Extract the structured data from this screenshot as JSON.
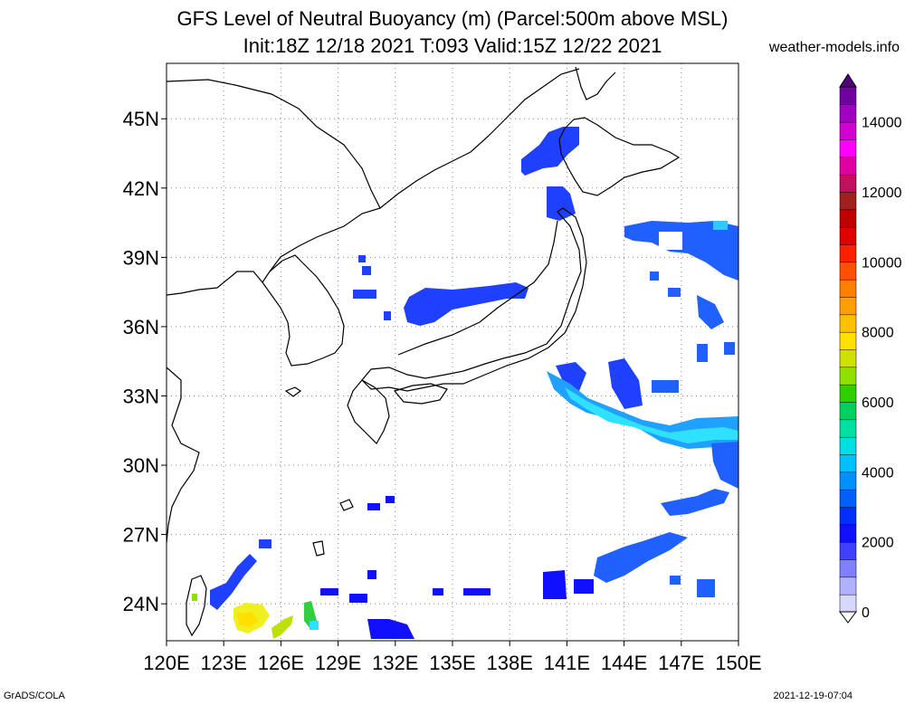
{
  "header": {
    "title_line1": "GFS Level of Neutral Buoyancy (m) (Parcel:500m above MSL)",
    "title_line2": "Init:18Z 12/18 2021 T:093 Valid:15Z 12/22 2021",
    "site": "weather-models.info"
  },
  "map": {
    "lat_labels": [
      "45N",
      "42N",
      "39N",
      "36N",
      "33N",
      "30N",
      "27N",
      "24N"
    ],
    "lat_values": [
      45,
      42,
      39,
      36,
      33,
      30,
      27,
      24
    ],
    "lon_labels": [
      "120E",
      "123E",
      "126E",
      "129E",
      "132E",
      "135E",
      "138E",
      "141E",
      "144E",
      "147E",
      "150E"
    ],
    "lon_values": [
      120,
      123,
      126,
      129,
      132,
      135,
      138,
      141,
      144,
      147,
      150
    ]
  },
  "colorbar": {
    "labels": [
      "14000",
      "12000",
      "10000",
      "8000",
      "6000",
      "4000",
      "2000",
      "0"
    ],
    "values": [
      14000,
      12000,
      10000,
      8000,
      6000,
      4000,
      2000,
      0
    ],
    "colors": [
      "#d8d8ff",
      "#b0b0ff",
      "#8080ff",
      "#4040ff",
      "#1010ff",
      "#0030ff",
      "#0060ff",
      "#0090ff",
      "#00c0ff",
      "#00e0e0",
      "#00e0a0",
      "#00d060",
      "#30d000",
      "#90e000",
      "#d0e000",
      "#ffe000",
      "#ffc000",
      "#ffa000",
      "#ff8000",
      "#ff5000",
      "#ff2000",
      "#e00000",
      "#c00000",
      "#a02020",
      "#c01060",
      "#e000a0",
      "#ff00ff",
      "#d000d0",
      "#a000c0",
      "#7000a0"
    ]
  },
  "footer": {
    "left": "GrADS/COLA",
    "right": "2021-12-19-07:04"
  }
}
